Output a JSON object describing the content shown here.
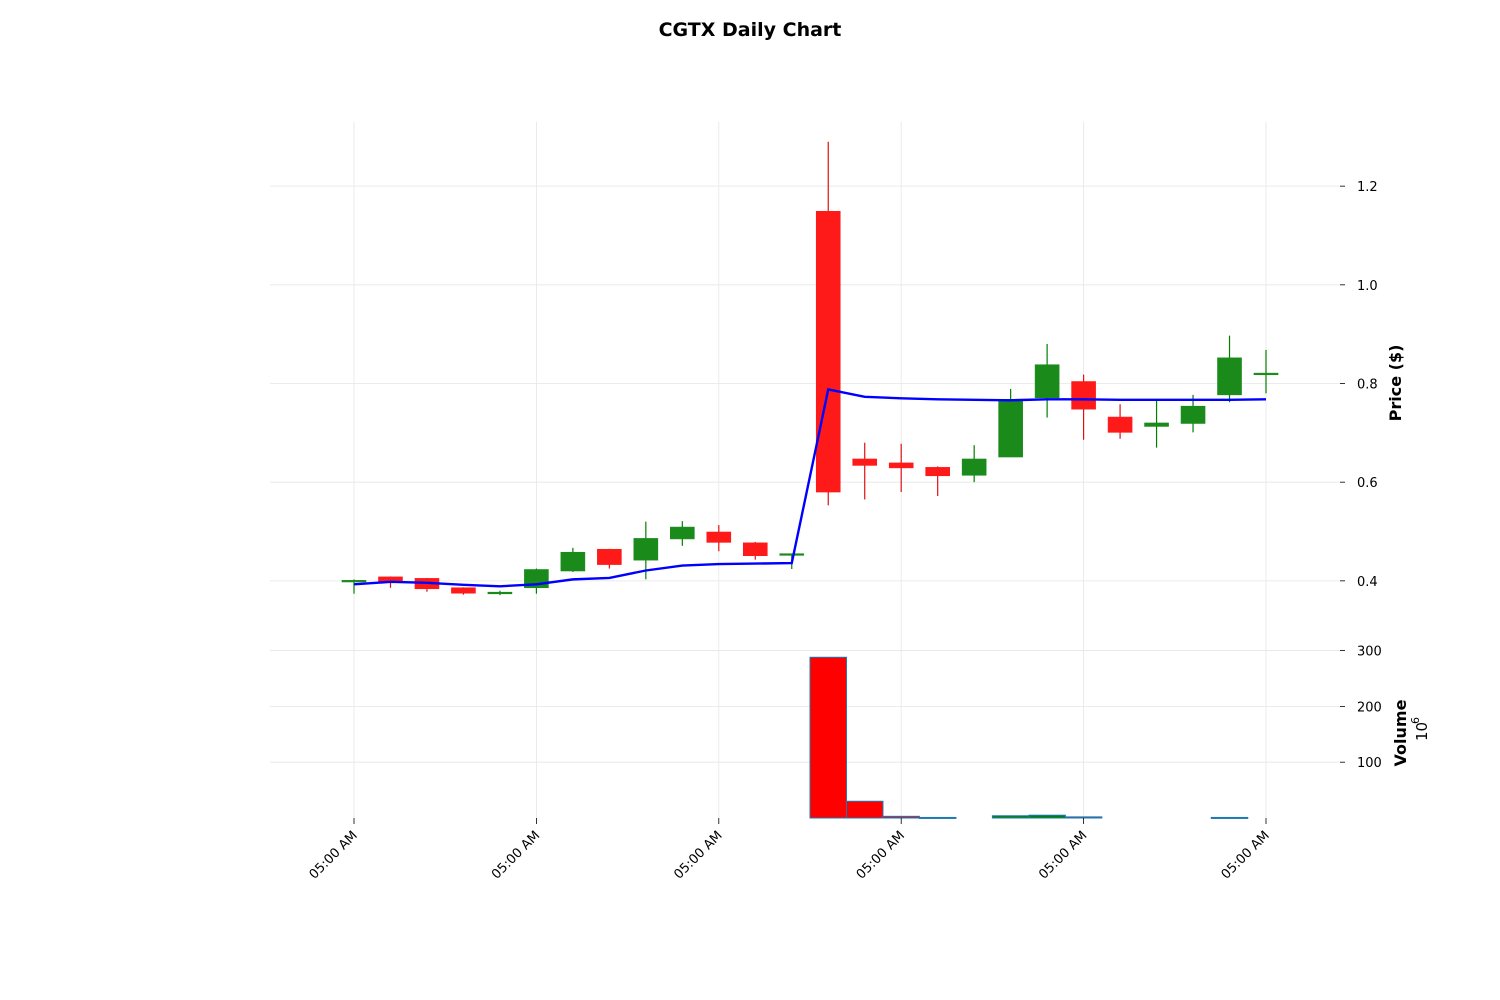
{
  "chart_data": {
    "type": "candlestick",
    "title": "CGTX Daily Chart",
    "price_axis": {
      "label": "Price ($)",
      "ylim": [
        0.27,
        1.33
      ],
      "ticks": [
        "0.4",
        "0.6",
        "0.8",
        "1.0",
        "1.2"
      ],
      "tick_values": [
        0.4,
        0.6,
        0.8,
        1.0,
        1.2
      ]
    },
    "volume_axis": {
      "label": "Volume",
      "exponent_label": "10",
      "exponent_power": "6",
      "ylim": [
        0,
        310
      ],
      "ticks": [
        "100",
        "200",
        "300"
      ],
      "tick_values": [
        100,
        200,
        300
      ]
    },
    "x_tick_labels": [
      "05:00 AM",
      "05:00 AM",
      "05:00 AM",
      "05:00 AM",
      "05:00 AM",
      "05:00 AM"
    ],
    "x_tick_indices": [
      0,
      5,
      10,
      15,
      20,
      25
    ],
    "candles": [
      {
        "open": 0.398,
        "high": 0.403,
        "low": 0.374,
        "close": 0.401,
        "volume": 0
      },
      {
        "open": 0.408,
        "high": 0.409,
        "low": 0.386,
        "close": 0.399,
        "volume": 0
      },
      {
        "open": 0.405,
        "high": 0.406,
        "low": 0.378,
        "close": 0.384,
        "volume": 0
      },
      {
        "open": 0.386,
        "high": 0.387,
        "low": 0.372,
        "close": 0.375,
        "volume": 0
      },
      {
        "open": 0.374,
        "high": 0.38,
        "low": 0.371,
        "close": 0.377,
        "volume": 0
      },
      {
        "open": 0.386,
        "high": 0.425,
        "low": 0.374,
        "close": 0.423,
        "volume": 0
      },
      {
        "open": 0.42,
        "high": 0.467,
        "low": 0.418,
        "close": 0.458,
        "volume": 0
      },
      {
        "open": 0.464,
        "high": 0.465,
        "low": 0.425,
        "close": 0.433,
        "volume": 0
      },
      {
        "open": 0.442,
        "high": 0.52,
        "low": 0.403,
        "close": 0.486,
        "volume": 0
      },
      {
        "open": 0.485,
        "high": 0.521,
        "low": 0.471,
        "close": 0.509,
        "volume": 0
      },
      {
        "open": 0.499,
        "high": 0.513,
        "low": 0.46,
        "close": 0.478,
        "volume": 0
      },
      {
        "open": 0.477,
        "high": 0.479,
        "low": 0.443,
        "close": 0.451,
        "volume": 0
      },
      {
        "open": 0.452,
        "high": 0.455,
        "low": 0.424,
        "close": 0.455,
        "volume": 0
      },
      {
        "open": 1.149,
        "high": 1.29,
        "low": 0.553,
        "close": 0.58,
        "volume": 288
      },
      {
        "open": 0.647,
        "high": 0.68,
        "low": 0.565,
        "close": 0.634,
        "volume": 30
      },
      {
        "open": 0.639,
        "high": 0.678,
        "low": 0.58,
        "close": 0.629,
        "volume": 3
      },
      {
        "open": 0.63,
        "high": 0.632,
        "low": 0.572,
        "close": 0.613,
        "volume": 1
      },
      {
        "open": 0.614,
        "high": 0.675,
        "low": 0.6,
        "close": 0.647,
        "volume": 0
      },
      {
        "open": 0.651,
        "high": 0.789,
        "low": 0.651,
        "close": 0.768,
        "volume": 4
      },
      {
        "open": 0.771,
        "high": 0.88,
        "low": 0.731,
        "close": 0.838,
        "volume": 5
      },
      {
        "open": 0.804,
        "high": 0.818,
        "low": 0.686,
        "close": 0.748,
        "volume": 2
      },
      {
        "open": 0.732,
        "high": 0.758,
        "low": 0.688,
        "close": 0.701,
        "volume": 0
      },
      {
        "open": 0.713,
        "high": 0.768,
        "low": 0.67,
        "close": 0.72,
        "volume": 0
      },
      {
        "open": 0.719,
        "high": 0.777,
        "low": 0.701,
        "close": 0.754,
        "volume": 0
      },
      {
        "open": 0.777,
        "high": 0.897,
        "low": 0.762,
        "close": 0.852,
        "volume": 1
      },
      {
        "open": 0.821,
        "high": 0.868,
        "low": 0.78,
        "close": 0.821,
        "volume": 0
      }
    ],
    "moving_average": [
      0.393,
      0.398,
      0.396,
      0.392,
      0.389,
      0.393,
      0.403,
      0.406,
      0.421,
      0.431,
      0.434,
      0.435,
      0.436,
      0.788,
      0.773,
      0.77,
      0.768,
      0.767,
      0.766,
      0.768,
      0.768,
      0.767,
      0.767,
      0.767,
      0.767,
      0.768
    ],
    "grid": true,
    "colors": {
      "up": "#1a8a1a",
      "up_wick": "#008000",
      "down": "#ff1a1a",
      "down_wick": "#e01010",
      "volume_up": "#008000",
      "volume_down": "#ff0000",
      "volume_edge": "#1f77b4",
      "moving_average": "#0000ff",
      "grid": "#e6e6e6"
    }
  }
}
